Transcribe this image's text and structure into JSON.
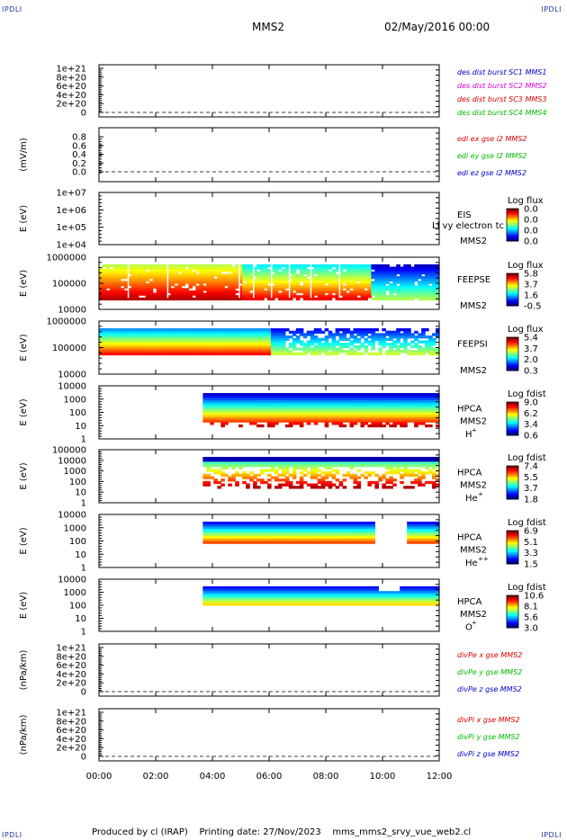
{
  "corner_marks": {
    "top_left": "IPDLI",
    "top_right": "IPDLI",
    "bottom_left": "IPDLI",
    "bottom_right": "IPDLI"
  },
  "header": {
    "mission": "MMS2",
    "date": "02/May/2016 00:00"
  },
  "footer": {
    "producer": "Produced by cl (IRAP)",
    "printing_date": "Printing date: 27/Nov/2023",
    "script": "mms_mms2_srvy_vue_web2.cl"
  },
  "chart_data": [
    {
      "type": "line",
      "panel": "des-dist-burst",
      "y_ticks": [
        "1e+21",
        "8e+20",
        "6e+20",
        "4e+20",
        "2e+20",
        "0"
      ],
      "ylabel": "",
      "reference_line": 0,
      "legend": [
        {
          "label": "des dist burst SC1 MMS1",
          "color": "#0000cc"
        },
        {
          "label": "des dist burst SC2 MMS2",
          "color": "#dd00dd"
        },
        {
          "label": "des dist burst SC3 MMS3",
          "color": "#dd0000"
        },
        {
          "label": "des dist burst SC4 MMS4",
          "color": "#00bb00"
        }
      ]
    },
    {
      "type": "line",
      "panel": "edi-e-field",
      "y_ticks": [
        "0.8",
        "0.6",
        "0.4",
        "0.2",
        "0.0"
      ],
      "ylabel": "(mV/m)",
      "reference_line": 0,
      "legend": [
        {
          "label": "edi ex gse l2 MMS2",
          "color": "#dd0000"
        },
        {
          "label": "edi ey gse l2 MMS2",
          "color": "#00bb00"
        },
        {
          "label": "edi ez gse l2 MMS2",
          "color": "#0000cc"
        }
      ]
    },
    {
      "type": "heatmap",
      "panel": "eis",
      "y_ticks": [
        "1e+07",
        "1e+06",
        "1e+05",
        "1e+04"
      ],
      "ylabel": "E (eV)",
      "log_y": true,
      "labels": [
        "EIS",
        "MMS2"
      ],
      "overlay_text": "Ll vy electron tc",
      "colorbar": {
        "title": "Log flux",
        "ticks": [
          "0.0",
          "0.0",
          "0.0",
          "0.0"
        ]
      }
    },
    {
      "type": "heatmap",
      "panel": "feepse",
      "y_ticks": [
        "1000000",
        "100000",
        "10000"
      ],
      "ylabel": "E (eV)",
      "log_y": true,
      "labels": [
        "FEEPSE",
        "MMS2"
      ],
      "colorbar": {
        "title": "Log flux",
        "ticks": [
          "5.8",
          "3.7",
          "1.6",
          "-0.5"
        ]
      }
    },
    {
      "type": "heatmap",
      "panel": "feepsi",
      "y_ticks": [
        "1000000",
        "100000",
        "10000"
      ],
      "ylabel": "E (eV)",
      "log_y": true,
      "labels": [
        "FEEPSI",
        "MMS2"
      ],
      "colorbar": {
        "title": "Log flux",
        "ticks": [
          "5.4",
          "3.7",
          "2.0",
          "0.3"
        ]
      }
    },
    {
      "type": "heatmap",
      "panel": "hpca-h",
      "y_ticks": [
        "10000",
        "1000",
        "100",
        "10",
        "1"
      ],
      "ylabel": "E (eV)",
      "log_y": true,
      "labels": [
        "HPCA",
        "MMS2"
      ],
      "species": "H",
      "charge": "+",
      "colorbar": {
        "title": "Log fdist",
        "ticks": [
          "9.0",
          "6.2",
          "3.4",
          "0.6"
        ]
      }
    },
    {
      "type": "heatmap",
      "panel": "hpca-he",
      "y_ticks": [
        "100000",
        "10000",
        "1000",
        "100",
        "10",
        "1"
      ],
      "ylabel": "E (eV)",
      "log_y": true,
      "labels": [
        "HPCA",
        "MMS2"
      ],
      "species": "He",
      "charge": "+",
      "colorbar": {
        "title": "Log fdist",
        "ticks": [
          "7.4",
          "5.5",
          "3.7",
          "1.8"
        ]
      }
    },
    {
      "type": "heatmap",
      "panel": "hpca-he2",
      "y_ticks": [
        "10000",
        "1000",
        "100",
        "10",
        "1"
      ],
      "ylabel": "E (eV)",
      "log_y": true,
      "labels": [
        "HPCA",
        "MMS2"
      ],
      "species": "He",
      "charge": "++",
      "colorbar": {
        "title": "Log fdist",
        "ticks": [
          "6.9",
          "5.1",
          "3.3",
          "1.5"
        ]
      }
    },
    {
      "type": "heatmap",
      "panel": "hpca-o",
      "y_ticks": [
        "10000",
        "1000",
        "100",
        "10",
        "1"
      ],
      "ylabel": "E (eV)",
      "log_y": true,
      "labels": [
        "HPCA",
        "MMS2"
      ],
      "species": "O",
      "charge": "+",
      "colorbar": {
        "title": "Log fdist",
        "ticks": [
          "10.6",
          "8.1",
          "5.6",
          "3.0"
        ]
      }
    },
    {
      "type": "line",
      "panel": "divpe",
      "y_ticks": [
        "1e+21",
        "8e+20",
        "6e+20",
        "4e+20",
        "2e+20",
        "0"
      ],
      "ylabel": "(nPa/km)",
      "reference_line": 0,
      "legend": [
        {
          "label": "divPe x gse MMS2",
          "color": "#dd0000"
        },
        {
          "label": "divPe y gse MMS2",
          "color": "#00bb00"
        },
        {
          "label": "divPe z gse MMS2",
          "color": "#0000cc"
        }
      ]
    },
    {
      "type": "line",
      "panel": "divpi",
      "y_ticks": [
        "1e+21",
        "8e+20",
        "6e+20",
        "4e+20",
        "2e+20",
        "0"
      ],
      "ylabel": "(nPa/km)",
      "reference_line": 0,
      "legend": [
        {
          "label": "divPi x gse MMS2",
          "color": "#dd0000"
        },
        {
          "label": "divPi y gse MMS2",
          "color": "#00bb00"
        },
        {
          "label": "divPi z gse MMS2",
          "color": "#0000cc"
        }
      ]
    }
  ],
  "x_axis": {
    "ticks": [
      "00:00",
      "02:00",
      "04:00",
      "06:00",
      "08:00",
      "10:00",
      "12:00"
    ],
    "range_hours": [
      0,
      12
    ]
  }
}
